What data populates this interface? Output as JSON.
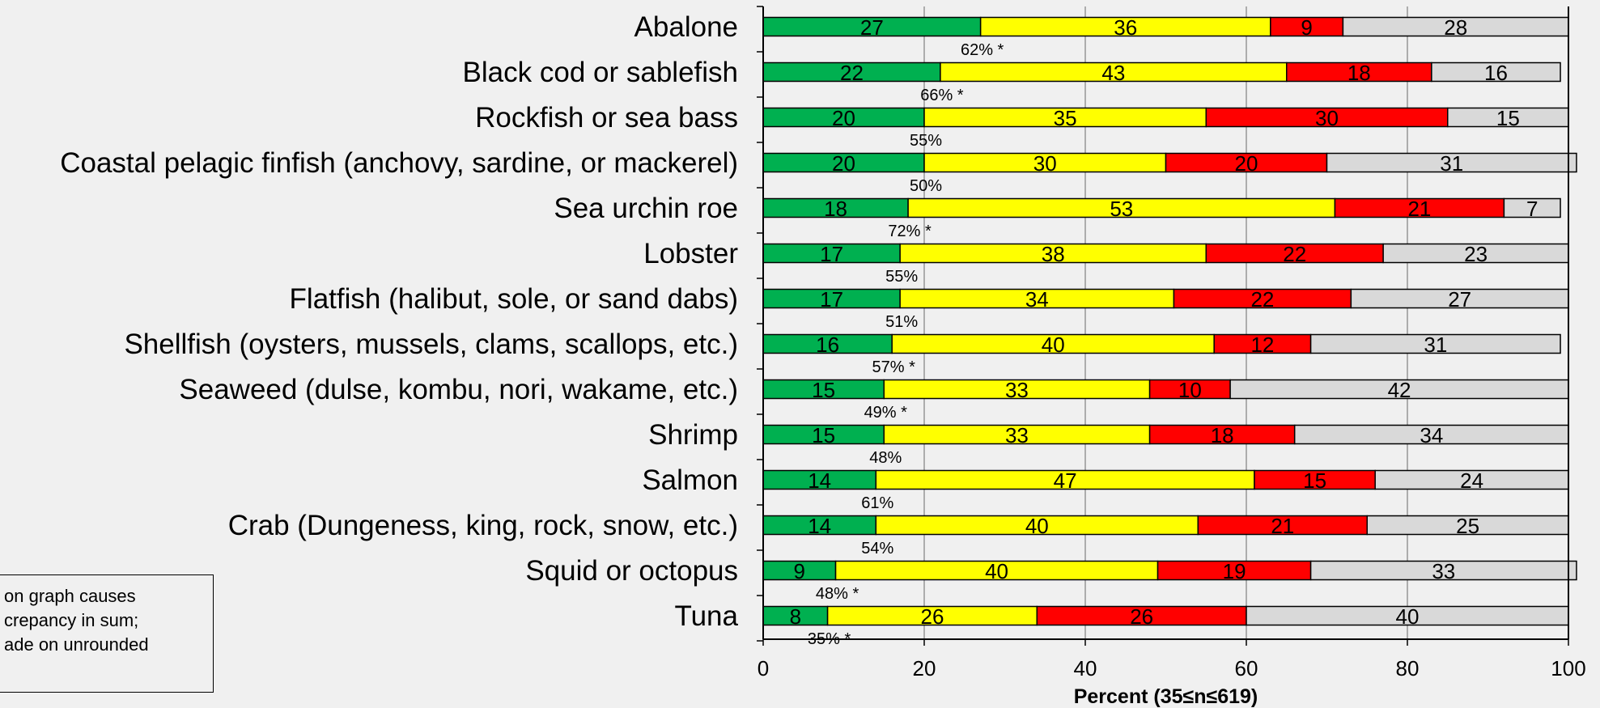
{
  "chart_data": {
    "type": "bar",
    "orientation": "horizontal",
    "stacked": true,
    "categories": [
      "Abalone",
      "Black cod or sablefish",
      "Rockfish or sea bass",
      "Coastal pelagic finfish (anchovy, sardine, or mackerel)",
      "Sea urchin roe",
      "Lobster",
      "Flatfish (halibut, sole, or sand dabs)",
      "Shellfish (oysters, mussels, clams, scallops, etc.)",
      "Seaweed (dulse, kombu, nori, wakame, etc.)",
      "Shrimp",
      "Salmon",
      "Crab (Dungeness, king, rock, snow, etc.)",
      "Squid or octopus",
      "Tuna"
    ],
    "series": [
      {
        "color": "#00b050",
        "values": [
          27,
          22,
          20,
          20,
          18,
          17,
          17,
          16,
          15,
          15,
          14,
          14,
          9,
          8
        ]
      },
      {
        "color": "#ffff00",
        "values": [
          36,
          43,
          35,
          30,
          53,
          38,
          34,
          40,
          33,
          33,
          47,
          40,
          40,
          26
        ]
      },
      {
        "color": "#ff0000",
        "values": [
          9,
          18,
          30,
          20,
          21,
          22,
          22,
          12,
          10,
          18,
          15,
          21,
          19,
          26
        ]
      },
      {
        "color": "#d9d9d9",
        "values": [
          28,
          16,
          15,
          31,
          7,
          23,
          27,
          31,
          42,
          34,
          24,
          25,
          33,
          40
        ]
      }
    ],
    "annotations": [
      "62% *",
      "66% *",
      "55%",
      "50%",
      "72% *",
      "55%",
      "51%",
      "57% *",
      "49% *",
      "48%",
      "61%",
      "54%",
      "48% *",
      "35% *"
    ],
    "xlabel": "Percent (35≤n≤619)",
    "xlim": [
      0,
      100
    ],
    "xticks": [
      0,
      20,
      40,
      60,
      80,
      100
    ],
    "grid": "vertical"
  },
  "note": {
    "lines": [
      "on graph causes",
      "crepancy in sum;",
      "ade on unrounded"
    ]
  }
}
